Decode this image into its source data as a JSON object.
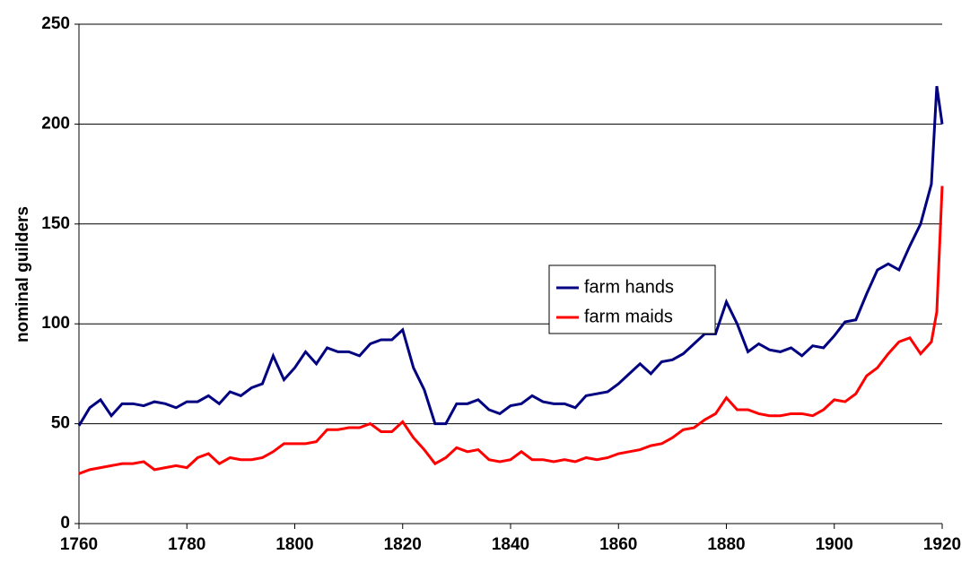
{
  "chart_data": {
    "type": "line",
    "y_label": "nominal guilders",
    "x": [
      1760,
      1762,
      1764,
      1766,
      1768,
      1770,
      1772,
      1774,
      1776,
      1778,
      1780,
      1782,
      1784,
      1786,
      1788,
      1790,
      1792,
      1794,
      1796,
      1798,
      1800,
      1802,
      1804,
      1806,
      1808,
      1810,
      1812,
      1814,
      1816,
      1818,
      1820,
      1822,
      1824,
      1826,
      1828,
      1830,
      1832,
      1834,
      1836,
      1838,
      1840,
      1842,
      1844,
      1846,
      1848,
      1850,
      1852,
      1854,
      1856,
      1858,
      1860,
      1862,
      1864,
      1866,
      1868,
      1870,
      1872,
      1874,
      1876,
      1878,
      1880,
      1882,
      1884,
      1886,
      1888,
      1890,
      1892,
      1894,
      1896,
      1898,
      1900,
      1902,
      1904,
      1906,
      1908,
      1910,
      1912,
      1914,
      1916,
      1918,
      1919,
      1920
    ],
    "series": [
      {
        "name": "farm hands",
        "color": "#000080",
        "values": [
          49,
          58,
          62,
          54,
          60,
          60,
          59,
          61,
          60,
          58,
          61,
          61,
          64,
          60,
          66,
          64,
          68,
          70,
          84,
          72,
          78,
          86,
          80,
          88,
          86,
          86,
          84,
          90,
          92,
          92,
          97,
          78,
          67,
          50,
          50,
          60,
          60,
          62,
          57,
          55,
          59,
          60,
          64,
          61,
          60,
          60,
          58,
          64,
          65,
          66,
          70,
          75,
          80,
          75,
          81,
          82,
          85,
          90,
          95,
          95,
          111,
          100,
          86,
          90,
          87,
          86,
          88,
          84,
          89,
          88,
          94,
          101,
          102,
          115,
          127,
          130,
          127,
          139,
          150,
          170,
          219,
          200
        ]
      },
      {
        "name": "farm maids",
        "color": "#ff0000",
        "values": [
          25,
          27,
          28,
          29,
          30,
          30,
          31,
          27,
          28,
          29,
          28,
          33,
          35,
          30,
          33,
          32,
          32,
          33,
          36,
          40,
          40,
          40,
          41,
          47,
          47,
          48,
          48,
          50,
          46,
          46,
          51,
          43,
          37,
          30,
          33,
          38,
          36,
          37,
          32,
          31,
          32,
          36,
          32,
          32,
          31,
          32,
          31,
          33,
          32,
          33,
          35,
          36,
          37,
          39,
          40,
          43,
          47,
          48,
          52,
          55,
          63,
          57,
          57,
          55,
          54,
          54,
          55,
          55,
          54,
          57,
          62,
          61,
          65,
          74,
          78,
          85,
          91,
          93,
          85,
          91,
          106,
          169
        ]
      }
    ],
    "xlim": [
      1760,
      1920
    ],
    "xticks": [
      1760,
      1780,
      1800,
      1820,
      1840,
      1860,
      1880,
      1900,
      1920
    ],
    "ylim": [
      0,
      250
    ],
    "yticks": [
      0,
      50,
      100,
      150,
      200,
      250
    ],
    "grid": true
  }
}
